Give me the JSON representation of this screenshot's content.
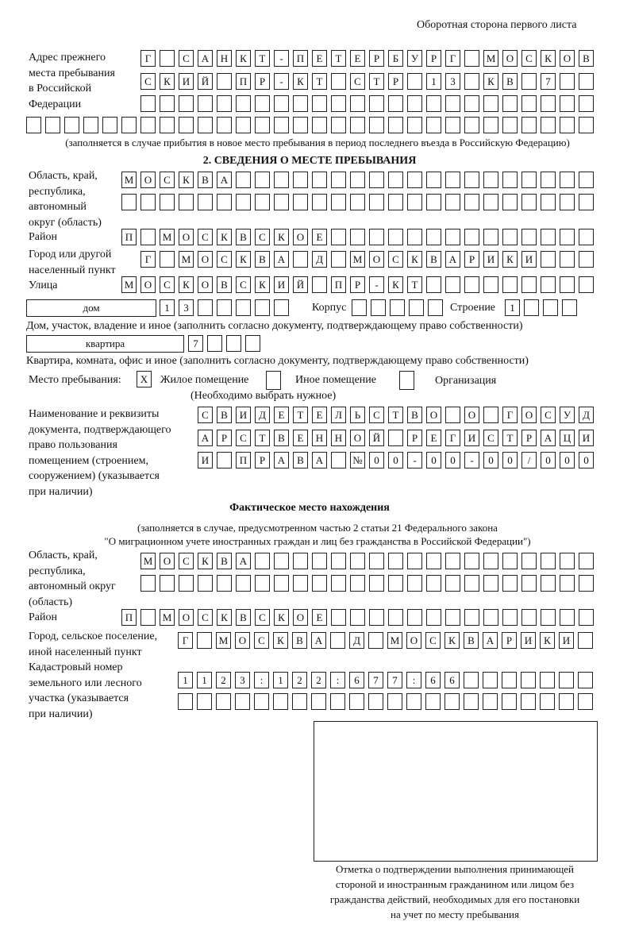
{
  "header": {
    "page_side": "Оборотная сторона первого листа"
  },
  "prev_address": {
    "label": [
      "Адрес прежнего",
      "места пребывания",
      "в Российской",
      "Федерации"
    ],
    "rows": [
      [
        "Г",
        "",
        "С",
        "А",
        "Н",
        "К",
        "Т",
        "-",
        "П",
        "Е",
        "Т",
        "Е",
        "Р",
        "Б",
        "У",
        "Р",
        "Г",
        "",
        "М",
        "О",
        "С",
        "К",
        "О",
        "В"
      ],
      [
        "С",
        "К",
        "И",
        "Й",
        "",
        "П",
        "Р",
        "-",
        "К",
        "Т",
        "",
        "С",
        "Т",
        "Р",
        "",
        "1",
        "3",
        "",
        "К",
        "В",
        "",
        "7",
        "",
        ""
      ],
      [
        "",
        "",
        "",
        "",
        "",
        "",
        "",
        "",
        "",
        "",
        "",
        "",
        "",
        "",
        "",
        "",
        "",
        "",
        "",
        "",
        "",
        "",
        "",
        ""
      ],
      [
        "",
        "",
        "",
        "",
        "",
        "",
        "",
        "",
        "",
        "",
        "",
        "",
        "",
        "",
        "",
        "",
        "",
        "",
        "",
        "",
        "",
        "",
        "",
        "",
        "",
        "",
        "",
        "",
        "",
        ""
      ]
    ],
    "note": "(заполняется в случае прибытия в новое место пребывания в период последнего въезда в Российскую Федерацию)"
  },
  "section2": {
    "title": "2. СВЕДЕНИЯ О МЕСТЕ ПРЕБЫВАНИЯ",
    "region_label": [
      "Область, край,",
      "республика,",
      "автономный",
      "округ (область)"
    ],
    "region_rows": [
      [
        "М",
        "О",
        "С",
        "К",
        "В",
        "А",
        "",
        "",
        "",
        "",
        "",
        "",
        "",
        "",
        "",
        "",
        "",
        "",
        "",
        "",
        "",
        "",
        "",
        "",
        ""
      ],
      [
        "",
        "",
        "",
        "",
        "",
        "",
        "",
        "",
        "",
        "",
        "",
        "",
        "",
        "",
        "",
        "",
        "",
        "",
        "",
        "",
        "",
        "",
        "",
        "",
        ""
      ]
    ],
    "district_label": "Район",
    "district_row": [
      "П",
      "",
      "М",
      "О",
      "С",
      "К",
      "В",
      "С",
      "К",
      "О",
      "Е",
      "",
      "",
      "",
      "",
      "",
      "",
      "",
      "",
      "",
      "",
      "",
      "",
      "",
      ""
    ],
    "city_label": [
      "Город или другой",
      "населенный пункт"
    ],
    "city_row": [
      "Г",
      "",
      "М",
      "О",
      "С",
      "К",
      "В",
      "А",
      "",
      "Д",
      "",
      "М",
      "О",
      "С",
      "К",
      "В",
      "А",
      "Р",
      "И",
      "К",
      "И",
      "",
      "",
      ""
    ],
    "street_label": "Улица",
    "street_row": [
      "М",
      "О",
      "С",
      "К",
      "О",
      "В",
      "С",
      "К",
      "И",
      "Й",
      "",
      "П",
      "Р",
      "-",
      "К",
      "Т",
      "",
      "",
      "",
      "",
      "",
      "",
      "",
      "",
      ""
    ],
    "house_type": "дом",
    "house_row": [
      "1",
      "3",
      "",
      "",
      "",
      "",
      ""
    ],
    "korpus_label": "Корпус",
    "korpus_row": [
      "",
      "",
      "",
      "",
      ""
    ],
    "building_label": "Строение",
    "building_row": [
      "1",
      "",
      "",
      ""
    ],
    "house_note": "Дом, участок, владение и иное (заполнить согласно документу, подтверждающему право собственности)",
    "flat_type": "квартира",
    "flat_row": [
      "7",
      "",
      "",
      ""
    ],
    "flat_note": "Квартира, комната, офис и иное (заполнить согласно документу, подтверждающему право собственности)",
    "stay_label": "Место пребывания:",
    "stay_options": [
      {
        "label": "Жилое помещение",
        "mark": "X"
      },
      {
        "label": "Иное помещение",
        "mark": ""
      },
      {
        "label": "Организация",
        "mark": ""
      }
    ],
    "stay_note": "(Необходимо выбрать нужное)",
    "doc_label": [
      "Наименование и реквизиты",
      "документа, подтверждающего",
      "право пользования",
      "помещением (строением,",
      "сооружением) (указывается",
      "при наличии)"
    ],
    "doc_rows": [
      [
        "С",
        "В",
        "И",
        "Д",
        "Е",
        "Т",
        "Е",
        "Л",
        "Ь",
        "С",
        "Т",
        "В",
        "О",
        "",
        "О",
        "",
        "Г",
        "О",
        "С",
        "У",
        "Д"
      ],
      [
        "А",
        "Р",
        "С",
        "Т",
        "В",
        "Е",
        "Н",
        "Н",
        "О",
        "Й",
        "",
        "Р",
        "Е",
        "Г",
        "И",
        "С",
        "Т",
        "Р",
        "А",
        "Ц",
        "И"
      ],
      [
        "И",
        "",
        "П",
        "Р",
        "А",
        "В",
        "А",
        "",
        "№",
        "0",
        "0",
        "-",
        "0",
        "0",
        "-",
        "0",
        "0",
        "/",
        "0",
        "0",
        "0"
      ]
    ]
  },
  "actual": {
    "title": "Фактическое место нахождения",
    "note": [
      "(заполняется в случае, предусмотренном частью 2 статьи 21 Федерального закона",
      "\"О миграционном учете иностранных граждан и лиц без гражданства в Российской Федерации\")"
    ],
    "region_label": [
      "Область, край,",
      "республика,",
      "автономный округ",
      "(область)"
    ],
    "region_rows": [
      [
        "М",
        "О",
        "С",
        "К",
        "В",
        "А",
        "",
        "",
        "",
        "",
        "",
        "",
        "",
        "",
        "",
        "",
        "",
        "",
        "",
        "",
        "",
        "",
        "",
        ""
      ],
      [
        "",
        "",
        "",
        "",
        "",
        "",
        "",
        "",
        "",
        "",
        "",
        "",
        "",
        "",
        "",
        "",
        "",
        "",
        "",
        "",
        "",
        "",
        "",
        ""
      ]
    ],
    "district_label": "Район",
    "district_row": [
      "П",
      "",
      "М",
      "О",
      "С",
      "К",
      "В",
      "С",
      "К",
      "О",
      "Е",
      "",
      "",
      "",
      "",
      "",
      "",
      "",
      "",
      "",
      "",
      "",
      "",
      "",
      ""
    ],
    "city_label": [
      "Город, сельское поселение,",
      "иной населенный пункт"
    ],
    "city_row": [
      "Г",
      "",
      "М",
      "О",
      "С",
      "К",
      "В",
      "А",
      "",
      "Д",
      "",
      "М",
      "О",
      "С",
      "К",
      "В",
      "А",
      "Р",
      "И",
      "К",
      "И",
      ""
    ],
    "cadastral_label": [
      "Кадастровый номер",
      "земельного или лесного",
      "участка (указывается",
      "при наличии)"
    ],
    "cadastral_rows": [
      [
        "1",
        "1",
        "2",
        "3",
        ":",
        "1",
        "2",
        "2",
        ":",
        "6",
        "7",
        "7",
        ":",
        "6",
        "6",
        "",
        "",
        "",
        "",
        "",
        "",
        ""
      ],
      [
        "",
        "",
        "",
        "",
        "",
        "",
        "",
        "",
        "",
        "",
        "",
        "",
        "",
        "",
        "",
        "",
        "",
        "",
        "",
        "",
        "",
        ""
      ]
    ]
  },
  "confirmation": {
    "caption": [
      "Отметка о подтверждении выполнения принимающей",
      "стороной и иностранным гражданином или лицом без",
      "гражданства действий, необходимых для его постановки",
      "на учет по месту пребывания"
    ]
  }
}
